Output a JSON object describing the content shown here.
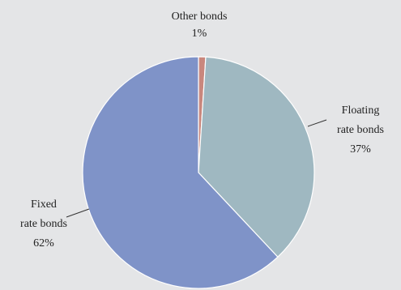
{
  "chart_data": {
    "type": "pie",
    "slices": [
      {
        "name": "Other bonds",
        "label_lines": [
          "Other bonds"
        ],
        "percent_label": "1%",
        "value": 1,
        "color": "#c9877d"
      },
      {
        "name": "Floating rate bonds",
        "label_lines": [
          "Floating",
          "rate bonds"
        ],
        "percent_label": "37%",
        "value": 37,
        "color": "#9fb8c1"
      },
      {
        "name": "Fixed rate bonds",
        "label_lines": [
          "Fixed",
          "rate bonds"
        ],
        "percent_label": "62%",
        "value": 62,
        "color": "#7f93c8"
      }
    ],
    "start_angle": "12 o'clock",
    "direction": "clockwise",
    "legend": "none",
    "title": ""
  },
  "colors": {
    "background": "#e4e5e7",
    "slice_border": "#ffffff",
    "leader_line": "#333333",
    "text": "#222222"
  }
}
